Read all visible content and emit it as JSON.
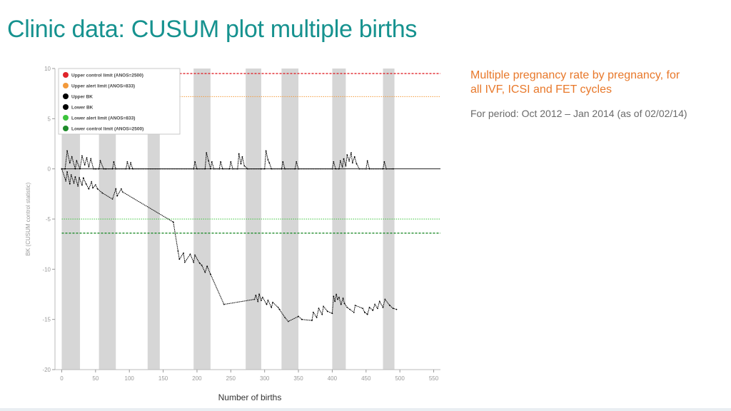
{
  "slide": {
    "title": "Clinic data: CUSUM plot multiple births",
    "side_heading": "Multiple pregnancy rate by pregnancy, for all IVF, ICSI and FET cycles",
    "side_period": "For period: Oct 2012 – Jan 2014 (as of 02/02/14)"
  },
  "chart_data": {
    "type": "line",
    "title": "",
    "xlabel": "Number of births",
    "ylabel": "BK (CUSUM control statistic)",
    "xlim": [
      -10,
      560
    ],
    "ylim": [
      -20,
      10
    ],
    "xticks": [
      0,
      50,
      100,
      150,
      200,
      250,
      300,
      350,
      400,
      450,
      500,
      550
    ],
    "yticks": [
      10,
      5,
      0,
      -5,
      -10,
      -15,
      -20
    ],
    "grid": false,
    "legend_position": "top-left",
    "shaded_bands_x": [
      [
        0,
        27
      ],
      [
        55,
        80
      ],
      [
        127,
        145
      ],
      [
        195,
        220
      ],
      [
        272,
        295
      ],
      [
        325,
        350
      ],
      [
        400,
        420
      ],
      [
        475,
        492
      ]
    ],
    "control_lines": [
      {
        "name": "Upper control limit (ANOS=2500)",
        "y": 9.5,
        "color": "#e0242a",
        "style": "dashed"
      },
      {
        "name": "Upper alert limit (ANOS=833)",
        "y": 7.2,
        "color": "#f39a3c",
        "style": "dotted"
      },
      {
        "name": "Lower alert limit (ANOS=833)",
        "y": -5.0,
        "color": "#3cc43c",
        "style": "dotted"
      },
      {
        "name": "Lower control limit (ANOS=2500)",
        "y": -6.4,
        "color": "#1e8a2a",
        "style": "dashed"
      }
    ],
    "series": [
      {
        "name": "Upper BK",
        "color": "#000000",
        "x": [
          0,
          5,
          8,
          12,
          15,
          20,
          22,
          27,
          30,
          34,
          37,
          40,
          43,
          47,
          50,
          55,
          57,
          62,
          65,
          75,
          77,
          80,
          95,
          97,
          100,
          102,
          105,
          195,
          197,
          200,
          212,
          214,
          217,
          220,
          222,
          225,
          233,
          235,
          238,
          248,
          250,
          253,
          260,
          262,
          265,
          267,
          270,
          275,
          295,
          300,
          302,
          305,
          307,
          310,
          325,
          327,
          330,
          345,
          347,
          350,
          400,
          402,
          405,
          410,
          412,
          415,
          417,
          420,
          422,
          425,
          428,
          430,
          433,
          436,
          440,
          450,
          452,
          455,
          475,
          477,
          480,
          490
        ],
        "y": [
          0,
          0,
          1.8,
          0.6,
          1.2,
          0,
          0.8,
          0,
          1.3,
          0.4,
          1.1,
          0.2,
          1.0,
          0,
          0,
          0,
          0.8,
          0,
          0,
          0,
          0.7,
          0,
          0,
          0.7,
          0,
          0.6,
          0,
          0,
          0.7,
          0,
          0,
          1.6,
          0.8,
          0,
          0.7,
          0,
          0,
          0.7,
          0,
          0,
          0.7,
          0,
          0,
          1.5,
          0.5,
          1.2,
          0.3,
          0,
          0,
          0,
          1.8,
          0.9,
          0.6,
          0,
          0,
          0.7,
          0,
          0,
          0.7,
          0,
          0,
          0.7,
          0,
          0,
          0.8,
          0.2,
          1.0,
          0.3,
          1.4,
          0.8,
          1.6,
          0.6,
          1.2,
          0.5,
          0,
          0,
          0.8,
          0,
          0,
          0.7,
          0,
          0
        ]
      },
      {
        "name": "Lower BK",
        "color": "#000000",
        "x": [
          0,
          6,
          8,
          12,
          14,
          18,
          20,
          24,
          26,
          30,
          32,
          36,
          40,
          44,
          46,
          50,
          53,
          60,
          75,
          80,
          82,
          88,
          90,
          165,
          172,
          174,
          180,
          182,
          190,
          195,
          197,
          204,
          207,
          212,
          215,
          220,
          240,
          285,
          287,
          290,
          292,
          295,
          297,
          303,
          305,
          310,
          312,
          320,
          322,
          330,
          335,
          350,
          355,
          370,
          372,
          377,
          380,
          385,
          387,
          393,
          400,
          402,
          404,
          406,
          408,
          410,
          413,
          416,
          418,
          422,
          426,
          432,
          434,
          445,
          448,
          452,
          455,
          460,
          463,
          467,
          470,
          475,
          478,
          485,
          490,
          495
        ],
        "y": [
          0,
          -1.2,
          -0.3,
          -1.5,
          -0.6,
          -1.4,
          -0.8,
          -1.7,
          -0.9,
          -1.6,
          -0.9,
          -1.5,
          -2.0,
          -1.3,
          -1.9,
          -1.6,
          -2.0,
          -2.4,
          -3.0,
          -2.0,
          -2.7,
          -2.0,
          -2.3,
          -5.3,
          -8.2,
          -9.0,
          -8.4,
          -9.3,
          -8.5,
          -9.3,
          -8.6,
          -9.4,
          -9.6,
          -10.3,
          -9.7,
          -10.5,
          -13.5,
          -13.0,
          -12.6,
          -13.2,
          -12.5,
          -13.1,
          -12.8,
          -13.5,
          -13.1,
          -13.8,
          -13.3,
          -13.8,
          -14.0,
          -14.8,
          -15.2,
          -14.7,
          -15.0,
          -15.1,
          -14.3,
          -14.8,
          -13.9,
          -14.5,
          -13.7,
          -14.2,
          -14.4,
          -12.7,
          -13.2,
          -12.5,
          -13.0,
          -12.8,
          -13.5,
          -12.9,
          -13.4,
          -13.8,
          -14.0,
          -14.3,
          -13.6,
          -13.9,
          -14.3,
          -14.5,
          -13.8,
          -14.1,
          -13.5,
          -13.9,
          -13.2,
          -13.8,
          -13.0,
          -13.6,
          -13.9,
          -14.0
        ]
      }
    ]
  }
}
